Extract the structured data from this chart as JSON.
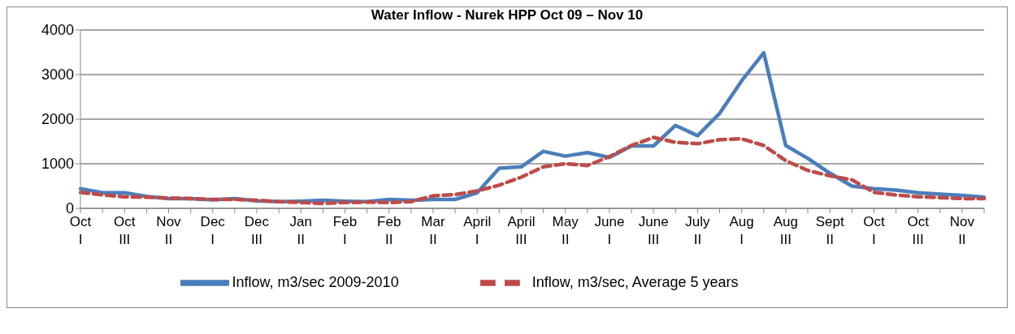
{
  "chart_data": {
    "type": "line",
    "title": "Water Inflow - Nurek HPP Oct 09 – Nov 10",
    "categories": [
      "Oct I",
      null,
      "Oct III",
      null,
      "Nov II",
      null,
      "Dec I",
      null,
      "Dec III",
      null,
      "Jan II",
      null,
      "Feb I",
      null,
      "Feb II",
      null,
      "Mar II",
      null,
      "April I",
      null,
      "April III",
      null,
      "May II",
      null,
      "June I",
      null,
      "June III",
      null,
      "July II",
      null,
      "Aug I",
      null,
      "Aug III",
      null,
      "Sept II",
      null,
      "Oct I",
      null,
      "Oct III",
      null,
      "Nov II",
      null
    ],
    "series": [
      {
        "name": "Inflow, m3/sec 2009-2010",
        "color": "#4a7ebb",
        "line_style": "solid",
        "values": [
          440,
          350,
          350,
          270,
          220,
          220,
          190,
          220,
          170,
          150,
          160,
          180,
          160,
          150,
          200,
          180,
          200,
          200,
          350,
          900,
          930,
          1280,
          1170,
          1250,
          1140,
          1400,
          1400,
          1860,
          1630,
          2130,
          2860,
          3490,
          1410,
          1120,
          790,
          500,
          440,
          410,
          350,
          320,
          290,
          250
        ]
      },
      {
        "name": "Inflow, m3/sec, Average 5 years",
        "color": "#be4b48",
        "line_style": "dashed",
        "values": [
          360,
          300,
          260,
          250,
          230,
          220,
          200,
          200,
          180,
          150,
          130,
          110,
          130,
          140,
          130,
          150,
          280,
          310,
          390,
          520,
          700,
          930,
          1000,
          960,
          1160,
          1410,
          1590,
          1480,
          1450,
          1540,
          1560,
          1410,
          1070,
          850,
          730,
          640,
          360,
          300,
          260,
          240,
          220,
          220
        ]
      }
    ],
    "ylim": [
      0,
      4000
    ],
    "yticks": [
      0,
      1000,
      2000,
      3000,
      4000
    ],
    "grid": "y",
    "legend": "bottom",
    "marker": "none"
  }
}
